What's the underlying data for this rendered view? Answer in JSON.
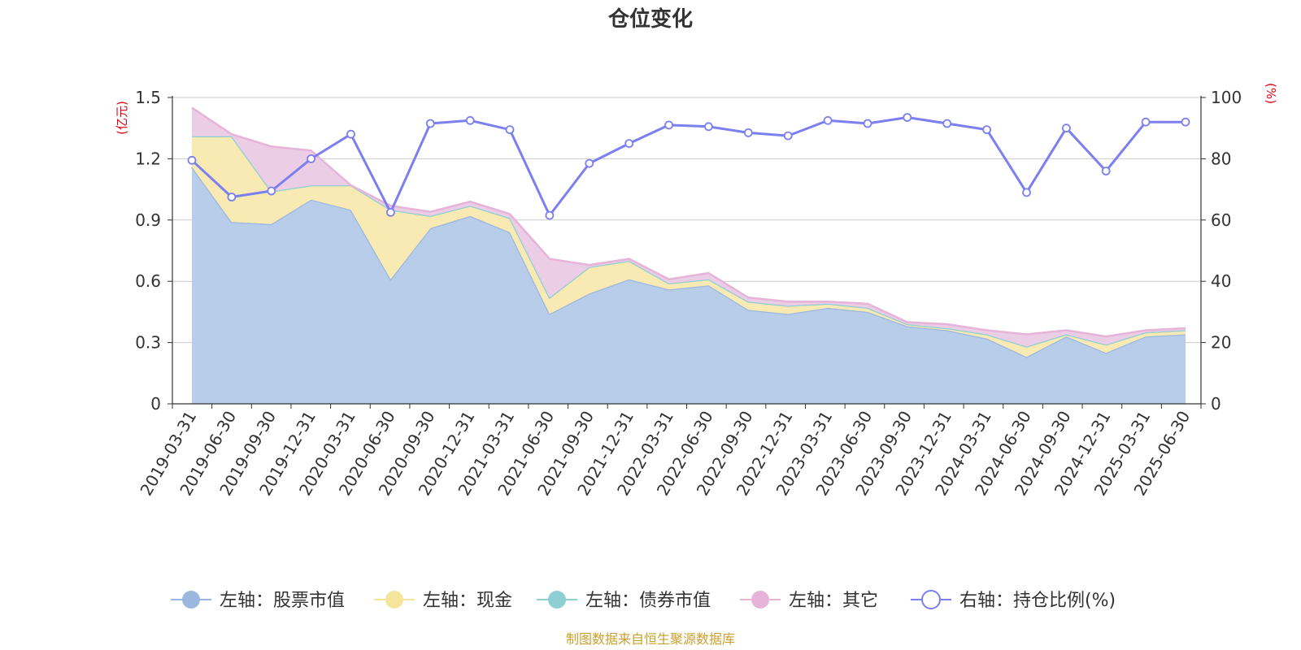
{
  "chart_data": {
    "type": "area",
    "title": "仓位变化",
    "categories": [
      "2019-03-31",
      "2019-06-30",
      "2019-09-30",
      "2019-12-31",
      "2020-03-31",
      "2020-06-30",
      "2020-09-30",
      "2020-12-31",
      "2021-03-31",
      "2021-06-30",
      "2021-09-30",
      "2021-12-31",
      "2022-03-31",
      "2022-06-30",
      "2022-09-30",
      "2022-12-31",
      "2023-03-31",
      "2023-06-30",
      "2023-09-30",
      "2023-12-31",
      "2024-03-31",
      "2024-06-30",
      "2024-09-30",
      "2024-12-31",
      "2025-03-31",
      "2025-06-30"
    ],
    "y_left": {
      "unit": "(亿元)",
      "min": 0,
      "max": 1.5,
      "ticks": [
        "0",
        "0.3",
        "0.6",
        "0.9",
        "1.2",
        "1.5"
      ]
    },
    "y_right": {
      "unit": "(%)",
      "min": 0,
      "max": 100,
      "ticks": [
        "0",
        "20",
        "40",
        "60",
        "80",
        "100"
      ]
    },
    "grid": true,
    "legend_position": "bottom",
    "series": [
      {
        "name": "左轴：股票市值",
        "axis": "left",
        "stack": true,
        "color": "#9bb7e0",
        "fill": "#b8cdea",
        "values": [
          1.16,
          0.89,
          0.88,
          1.0,
          0.95,
          0.61,
          0.86,
          0.92,
          0.84,
          0.44,
          0.54,
          0.61,
          0.56,
          0.58,
          0.46,
          0.44,
          0.47,
          0.45,
          0.38,
          0.36,
          0.32,
          0.23,
          0.33,
          0.25,
          0.33,
          0.34
        ]
      },
      {
        "name": "左轴：现金",
        "axis": "left",
        "stack": true,
        "color": "#f5e49c",
        "fill": "#f8eab2",
        "values": [
          0.15,
          0.42,
          0.16,
          0.07,
          0.12,
          0.34,
          0.06,
          0.05,
          0.07,
          0.08,
          0.13,
          0.09,
          0.03,
          0.03,
          0.04,
          0.04,
          0.02,
          0.02,
          0.01,
          0.01,
          0.02,
          0.05,
          0.01,
          0.04,
          0.02,
          0.02
        ]
      },
      {
        "name": "左轴：债券市值",
        "axis": "left",
        "stack": true,
        "color": "#8ecfd4",
        "fill": "#8ecfd4",
        "values": [
          0,
          0,
          0,
          0,
          0,
          0,
          0,
          0,
          0,
          0,
          0,
          0,
          0,
          0,
          0,
          0,
          0,
          0,
          0,
          0,
          0,
          0,
          0,
          0,
          0,
          0
        ]
      },
      {
        "name": "左轴：其它",
        "axis": "left",
        "stack": true,
        "color": "#e6b3d9",
        "fill": "#eccde6",
        "values": [
          0.14,
          0.01,
          0.22,
          0.17,
          0.0,
          0.02,
          0.02,
          0.02,
          0.02,
          0.19,
          0.01,
          0.01,
          0.02,
          0.03,
          0.02,
          0.02,
          0.01,
          0.02,
          0.01,
          0.02,
          0.02,
          0.06,
          0.02,
          0.04,
          0.01,
          0.01
        ]
      },
      {
        "name": "右轴：持仓比例(%)",
        "axis": "right",
        "stack": false,
        "color": "#7b7fef",
        "values": [
          79.5,
          67.5,
          69.5,
          80.0,
          88.0,
          62.5,
          91.5,
          92.5,
          89.5,
          61.5,
          78.5,
          85.0,
          91.0,
          90.5,
          88.5,
          87.5,
          92.5,
          91.5,
          93.5,
          91.5,
          89.5,
          69.0,
          90.0,
          76.0,
          92.0,
          92.0
        ]
      }
    ]
  },
  "source_note": "制图数据来自恒生聚源数据库",
  "colors": {
    "accent_red": "#e3000f",
    "grid": "#cccccc",
    "axis": "#333333",
    "source": "#c8a12f"
  }
}
